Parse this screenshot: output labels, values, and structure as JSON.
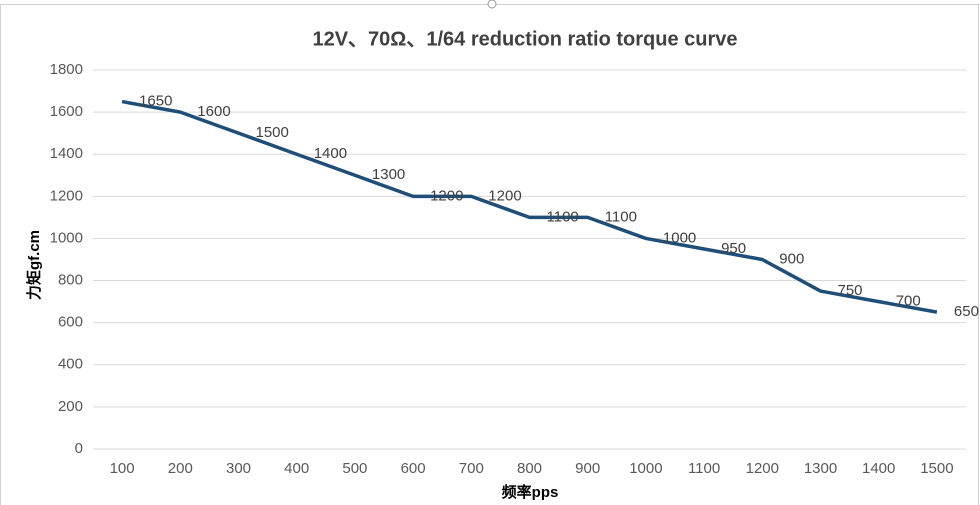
{
  "chart_data": {
    "type": "line",
    "title": "12V、70Ω、1/64 reduction ratio torque curve",
    "x_label": "频率pps",
    "y_label": "力矩gf.cm",
    "categories": [
      "100",
      "200",
      "300",
      "400",
      "500",
      "600",
      "700",
      "800",
      "900",
      "1000",
      "1100",
      "1200",
      "1300",
      "1400",
      "1500"
    ],
    "series": [
      {
        "name": "torque",
        "color": "#1f4e79",
        "values": [
          1650,
          1600,
          1500,
          1400,
          1300,
          1200,
          1200,
          1100,
          1100,
          1000,
          950,
          900,
          750,
          700,
          650
        ]
      }
    ],
    "ylim": [
      0,
      1800
    ],
    "yticks": [
      0,
      200,
      400,
      600,
      800,
      1000,
      1200,
      1400,
      1600,
      1800
    ],
    "grid": true,
    "data_labels": true
  }
}
